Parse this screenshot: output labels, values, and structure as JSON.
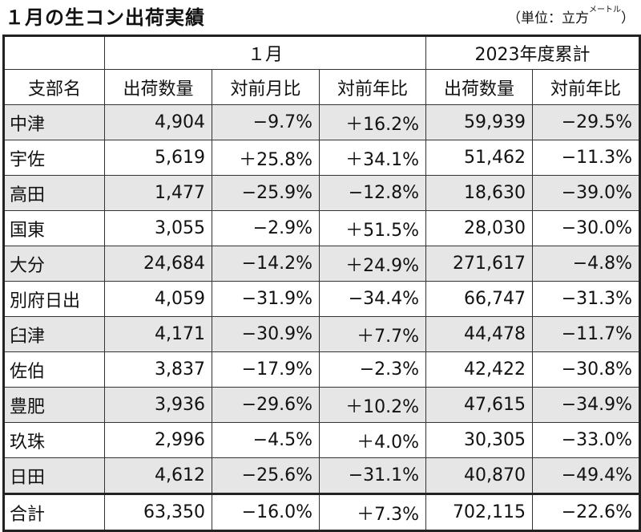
{
  "title": "１月の生コン出荷実績",
  "unit_prefix": "（単位：立方",
  "unit_small": "メートル",
  "unit_suffix": "）",
  "headers": {
    "group_month": "１月",
    "group_cumulative": "2023年度累計",
    "branch": "支部名",
    "cols": [
      "出荷数量",
      "対前月比",
      "対前年比",
      "出荷数量",
      "対前年比"
    ]
  },
  "rows": [
    {
      "name": "中津",
      "cells": [
        "4,904",
        "−9.7%",
        "＋16.2%",
        "59,939",
        "−29.5%"
      ]
    },
    {
      "name": "宇佐",
      "cells": [
        "5,619",
        "＋25.8%",
        "＋34.1%",
        "51,462",
        "−11.3%"
      ]
    },
    {
      "name": "高田",
      "cells": [
        "1,477",
        "−25.9%",
        "−12.8%",
        "18,630",
        "−39.0%"
      ]
    },
    {
      "name": "国東",
      "cells": [
        "3,055",
        "−2.9%",
        "＋51.5%",
        "28,030",
        "−30.0%"
      ]
    },
    {
      "name": "大分",
      "cells": [
        "24,684",
        "−14.2%",
        "＋24.9%",
        "271,617",
        "−4.8%"
      ]
    },
    {
      "name": "別府日出",
      "cells": [
        "4,059",
        "−31.9%",
        "−34.4%",
        "66,747",
        "−31.3%"
      ]
    },
    {
      "name": "臼津",
      "cells": [
        "4,171",
        "−30.9%",
        "＋7.7%",
        "44,478",
        "−11.7%"
      ]
    },
    {
      "name": "佐伯",
      "cells": [
        "3,837",
        "−17.9%",
        "−2.3%",
        "42,422",
        "−30.8%"
      ]
    },
    {
      "name": "豊肥",
      "cells": [
        "3,936",
        "−29.6%",
        "＋10.2%",
        "47,615",
        "−34.9%"
      ]
    },
    {
      "name": "玖珠",
      "cells": [
        "2,996",
        "−4.5%",
        "＋4.0%",
        "30,305",
        "−33.0%"
      ]
    },
    {
      "name": "日田",
      "cells": [
        "4,612",
        "−25.6%",
        "−31.1%",
        "40,870",
        "−49.4%"
      ]
    }
  ],
  "total": {
    "name": "合計",
    "cells": [
      "63,350",
      "−16.0%",
      "＋7.3%",
      "702,115",
      "−22.6%"
    ]
  }
}
